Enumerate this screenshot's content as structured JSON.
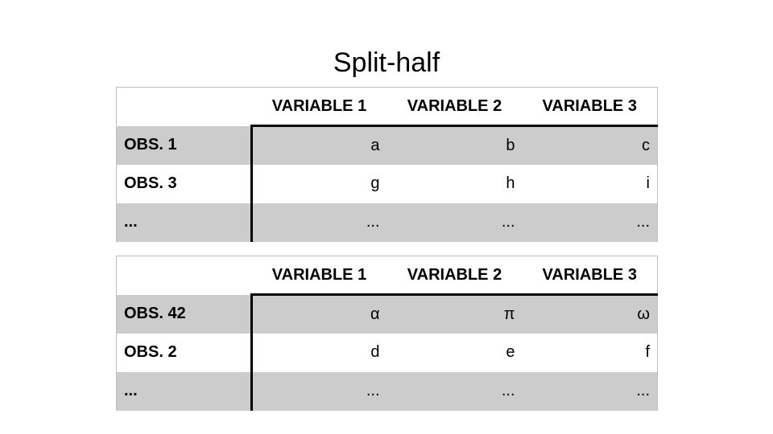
{
  "title": "Split-half",
  "tables": [
    {
      "headers": [
        "",
        "VARIABLE 1",
        "VARIABLE 2",
        "VARIABLE 3"
      ],
      "rows": [
        {
          "label": "OBS. 1",
          "values": [
            "a",
            "b",
            "c"
          ]
        },
        {
          "label": "OBS. 3",
          "values": [
            "g",
            "h",
            "i"
          ]
        },
        {
          "label": "...",
          "values": [
            "...",
            "...",
            "..."
          ]
        }
      ]
    },
    {
      "headers": [
        "",
        "VARIABLE 1",
        "VARIABLE 2",
        "VARIABLE 3"
      ],
      "rows": [
        {
          "label": "OBS. 42",
          "values": [
            "α",
            "π",
            "ω"
          ]
        },
        {
          "label": "OBS. 2",
          "values": [
            "d",
            "e",
            "f"
          ]
        },
        {
          "label": "...",
          "values": [
            "...",
            "...",
            "..."
          ]
        }
      ]
    }
  ],
  "colors": {
    "shaded_row": "#cccccc",
    "plain_row": "#ffffff",
    "divider": "#000000"
  }
}
